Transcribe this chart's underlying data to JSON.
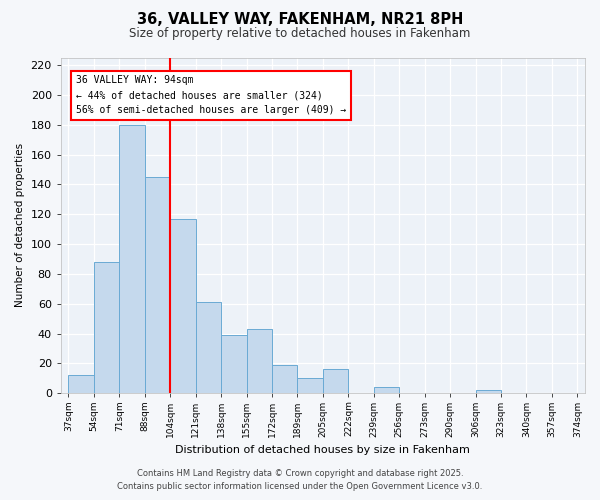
{
  "title": "36, VALLEY WAY, FAKENHAM, NR21 8PH",
  "subtitle": "Size of property relative to detached houses in Fakenham",
  "xlabel": "Distribution of detached houses by size in Fakenham",
  "ylabel": "Number of detached properties",
  "bar_values": [
    12,
    88,
    180,
    145,
    117,
    61,
    39,
    43,
    19,
    10,
    16,
    0,
    4,
    0,
    0,
    0,
    2,
    0,
    0,
    0
  ],
  "bin_labels": [
    "37sqm",
    "54sqm",
    "71sqm",
    "88sqm",
    "104sqm",
    "121sqm",
    "138sqm",
    "155sqm",
    "172sqm",
    "189sqm",
    "205sqm",
    "222sqm",
    "239sqm",
    "256sqm",
    "273sqm",
    "290sqm",
    "306sqm",
    "323sqm",
    "340sqm",
    "357sqm",
    "374sqm"
  ],
  "bar_color": "#c5d9ed",
  "bar_edge_color": "#6aaad4",
  "background_color": "#edf2f8",
  "grid_color": "#ffffff",
  "red_line_bin_index": 3,
  "annotation_box_text_line1": "36 VALLEY WAY: 94sqm",
  "annotation_box_text_line2": "← 44% of detached houses are smaller (324)",
  "annotation_box_text_line3": "56% of semi-detached houses are larger (409) →",
  "ylim": [
    0,
    225
  ],
  "yticks": [
    0,
    20,
    40,
    60,
    80,
    100,
    120,
    140,
    160,
    180,
    200,
    220
  ],
  "footer_line1": "Contains HM Land Registry data © Crown copyright and database right 2025.",
  "footer_line2": "Contains public sector information licensed under the Open Government Licence v3.0."
}
